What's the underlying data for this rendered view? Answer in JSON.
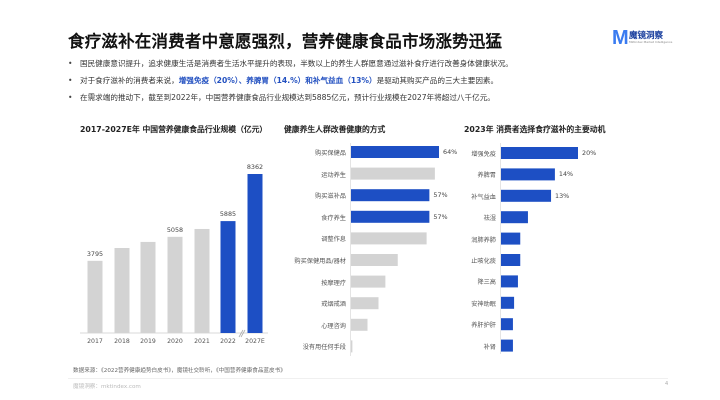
{
  "header": {
    "title": "食疗滋补在消费者中意愿强烈，营养健康食品市场涨势迅猛",
    "logo_text": "魔镜洞察",
    "logo_sub": "Mktindex Market Intelligence"
  },
  "bullets": [
    {
      "pre": "国民健康意识提升，追求健康生活是消费者生活水平提升的表现，半数以上的养生人群愿意通过滋补食疗进行改善身体健康状况。",
      "hl": "",
      "post": ""
    },
    {
      "pre": "对于食疗滋补的消费者来说，",
      "hl": "增强免疫（20%）、养脾胃（14.%）和补气益血（13%）",
      "post": "是驱动其购买产品的三大主要因素。"
    },
    {
      "pre": "在需求端的推动下，截至到2022年，中国营养健康食品行业规模达到5885亿元，预计行业规模在2027年将超过八千亿元。",
      "hl": "",
      "post": ""
    }
  ],
  "colors": {
    "blue": "#1d4fc4",
    "gray": "#d3d3d3"
  },
  "chart_data": [
    {
      "type": "bar",
      "title": "2017-2027E年 中国营养健康食品行业规模（亿元）",
      "categories": [
        "2017",
        "2018",
        "2019",
        "2020",
        "2021",
        "2022",
        "2027E"
      ],
      "values": [
        3795,
        4470,
        4790,
        5058,
        5470,
        5885,
        8362
      ],
      "labels": [
        "3795",
        "",
        "",
        "5058",
        "",
        "5885",
        "8362"
      ],
      "highlight": [
        false,
        false,
        false,
        false,
        false,
        true,
        true
      ],
      "ylim": [
        0,
        8362
      ]
    },
    {
      "type": "bar",
      "orientation": "horizontal",
      "title": "健康养生人群改善健康的方式",
      "categories": [
        "购买保健品",
        "运动养生",
        "购买滋补品",
        "食疗养生",
        "调整作息",
        "购买保健用品/器材",
        "按摩理疗",
        "戒烟戒酒",
        "心理咨询",
        "没有用任何手段"
      ],
      "values": [
        64,
        61,
        57,
        57,
        55,
        34,
        25,
        20,
        12,
        1
      ],
      "labels": [
        "64%",
        "",
        "57%",
        "57%",
        "",
        "",
        "",
        "",
        "",
        ""
      ],
      "highlight": [
        true,
        false,
        true,
        true,
        false,
        false,
        false,
        false,
        false,
        false
      ],
      "unit": "%"
    },
    {
      "type": "bar",
      "orientation": "horizontal",
      "title": "2023年 消费者选择食疗滋补的主要动机",
      "categories": [
        "增强免疫",
        "养脾胃",
        "补气益血",
        "祛湿",
        "润肺养肺",
        "止咳化痰",
        "降三高",
        "安神助眠",
        "养肝护肝",
        "补肾"
      ],
      "values": [
        20,
        14,
        13,
        7,
        5,
        5,
        4.4,
        3.4,
        3.1,
        3.1
      ],
      "labels": [
        "20%",
        "14%",
        "13%",
        "",
        "",
        "",
        "",
        "",
        "",
        ""
      ],
      "unit": "%"
    }
  ],
  "footer": {
    "source": "数据来源：《2022营养健康趋势白皮书》，魔镜社交聆听，《中国营养健康食品蓝皮书》",
    "site": "魔镜洞察：mktindex.com",
    "page": "4"
  }
}
